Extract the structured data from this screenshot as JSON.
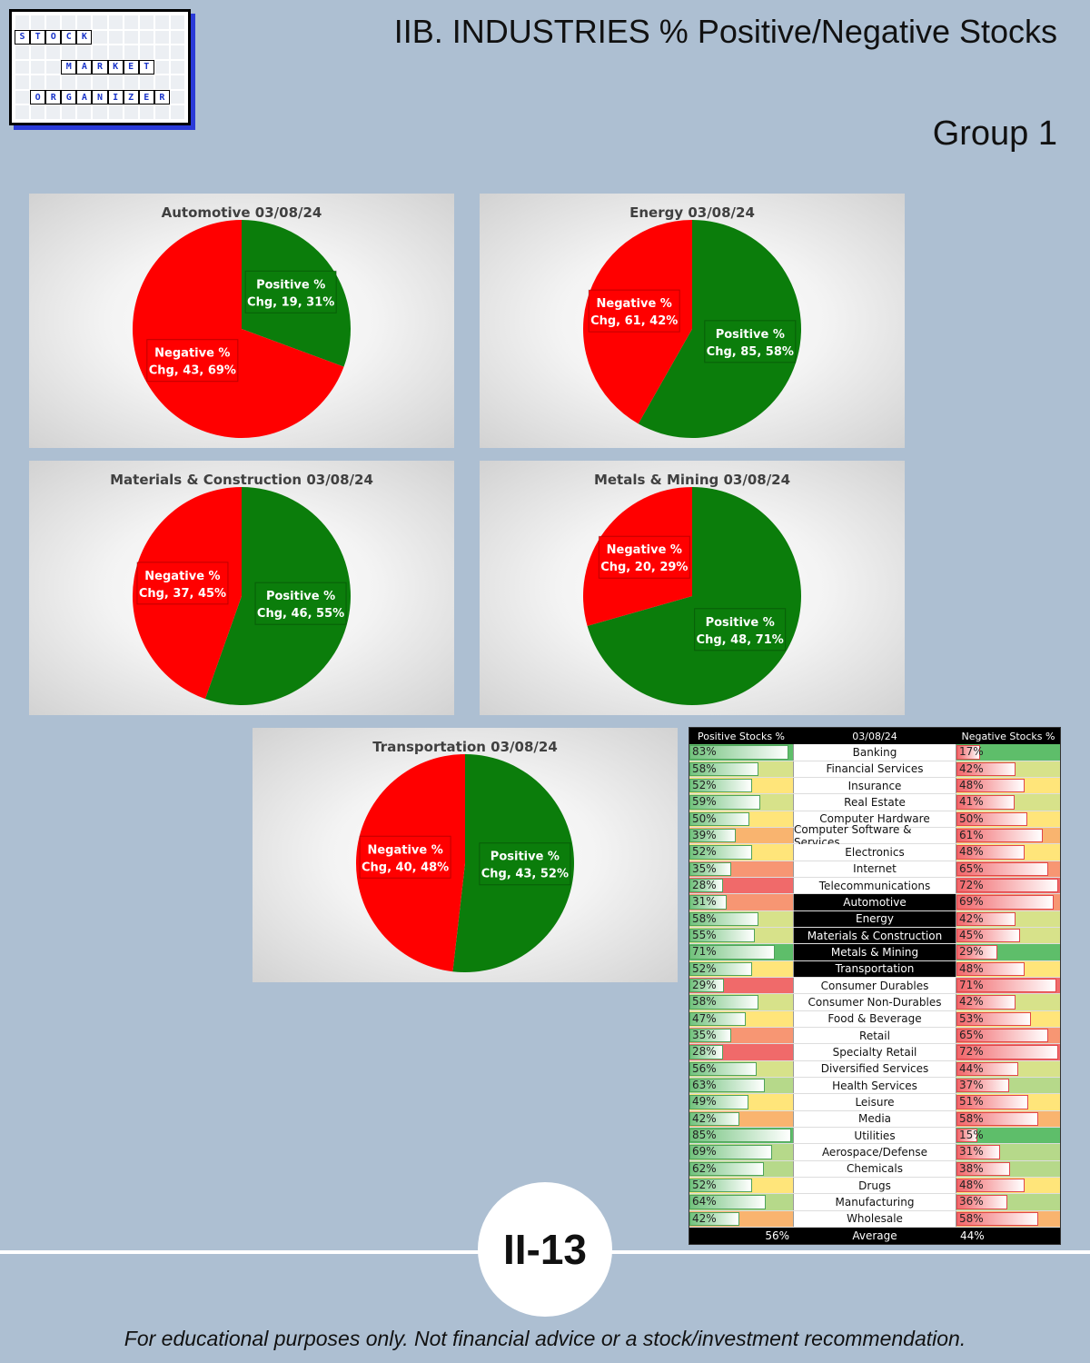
{
  "logo": {
    "rows": [
      [
        "",
        "",
        "",
        "",
        "",
        "",
        "",
        "",
        "",
        "",
        ""
      ],
      [
        "S",
        "T",
        "O",
        "C",
        "K",
        "",
        "",
        "",
        "",
        "",
        ""
      ],
      [
        "",
        "",
        "",
        "",
        "",
        "",
        "",
        "",
        "",
        "",
        ""
      ],
      [
        "",
        "",
        "",
        "M",
        "A",
        "R",
        "K",
        "E",
        "T",
        "",
        ""
      ],
      [
        "",
        "",
        "",
        "",
        "",
        "",
        "",
        "",
        "",
        "",
        ""
      ],
      [
        "",
        "O",
        "R",
        "G",
        "A",
        "N",
        "I",
        "Z",
        "E",
        "R",
        ""
      ],
      [
        "",
        "",
        "",
        "",
        "",
        "",
        "",
        "",
        "",
        "",
        ""
      ]
    ]
  },
  "title": "IIB. INDUSTRIES % Positive/Negative Stocks",
  "group": "Group 1",
  "colors": {
    "positive": "#0b7d0b",
    "negative": "#ff0000"
  },
  "chart_data": [
    {
      "type": "pie",
      "title": "Automotive 03/08/24",
      "slices": [
        {
          "name": "Positive % Chg",
          "value": 19,
          "percent": 31,
          "color": "#0b7d0b",
          "label_line1": "Positive %",
          "label_line2": "Chg, 19, 31%"
        },
        {
          "name": "Negative % Chg",
          "value": 43,
          "percent": 69,
          "color": "#ff0000",
          "label_line1": "Negative %",
          "label_line2": "Chg, 43, 69%"
        }
      ]
    },
    {
      "type": "pie",
      "title": "Energy 03/08/24",
      "slices": [
        {
          "name": "Positive % Chg",
          "value": 85,
          "percent": 58,
          "color": "#0b7d0b",
          "label_line1": "Positive %",
          "label_line2": "Chg, 85, 58%"
        },
        {
          "name": "Negative % Chg",
          "value": 61,
          "percent": 42,
          "color": "#ff0000",
          "label_line1": "Negative %",
          "label_line2": "Chg, 61, 42%"
        }
      ]
    },
    {
      "type": "pie",
      "title": "Materials & Construction 03/08/24",
      "slices": [
        {
          "name": "Positive % Chg",
          "value": 46,
          "percent": 55,
          "color": "#0b7d0b",
          "label_line1": "Positive %",
          "label_line2": "Chg, 46, 55%"
        },
        {
          "name": "Negative % Chg",
          "value": 37,
          "percent": 45,
          "color": "#ff0000",
          "label_line1": "Negative %",
          "label_line2": "Chg, 37, 45%"
        }
      ]
    },
    {
      "type": "pie",
      "title": "Metals & Mining 03/08/24",
      "slices": [
        {
          "name": "Positive % Chg",
          "value": 48,
          "percent": 71,
          "color": "#0b7d0b",
          "label_line1": "Positive %",
          "label_line2": "Chg, 48, 71%"
        },
        {
          "name": "Negative % Chg",
          "value": 20,
          "percent": 29,
          "color": "#ff0000",
          "label_line1": "Negative %",
          "label_line2": "Chg, 20, 29%"
        }
      ]
    },
    {
      "type": "pie",
      "title": "Transportation 03/08/24",
      "slices": [
        {
          "name": "Positive % Chg",
          "value": 43,
          "percent": 52,
          "color": "#0b7d0b",
          "label_line1": "Positive %",
          "label_line2": "Chg, 43, 52%"
        },
        {
          "name": "Negative % Chg",
          "value": 40,
          "percent": 48,
          "color": "#ff0000",
          "label_line1": "Negative %",
          "label_line2": "Chg, 40, 48%"
        }
      ]
    },
    {
      "type": "table",
      "headers": [
        "Positive Stocks %",
        "03/08/24",
        "Negative Stocks %"
      ],
      "rows": [
        {
          "industry": "Banking",
          "positive": 83,
          "negative": 17,
          "pos_label": "83%",
          "neg_label": "17%",
          "highlight": false
        },
        {
          "industry": "Financial Services",
          "positive": 58,
          "negative": 42,
          "pos_label": "58%",
          "neg_label": "42%",
          "highlight": false
        },
        {
          "industry": "Insurance",
          "positive": 52,
          "negative": 48,
          "pos_label": "52%",
          "neg_label": "48%",
          "highlight": false
        },
        {
          "industry": "Real Estate",
          "positive": 59,
          "negative": 41,
          "pos_label": "59%",
          "neg_label": "41%",
          "highlight": false
        },
        {
          "industry": "Computer Hardware",
          "positive": 50,
          "negative": 50,
          "pos_label": "50%",
          "neg_label": "50%",
          "highlight": false
        },
        {
          "industry": "Computer Software & Services",
          "positive": 39,
          "negative": 61,
          "pos_label": "39%",
          "neg_label": "61%",
          "highlight": false
        },
        {
          "industry": "Electronics",
          "positive": 52,
          "negative": 48,
          "pos_label": "52%",
          "neg_label": "48%",
          "highlight": false
        },
        {
          "industry": "Internet",
          "positive": 35,
          "negative": 65,
          "pos_label": "35%",
          "neg_label": "65%",
          "highlight": false
        },
        {
          "industry": "Telecommunications",
          "positive": 28,
          "negative": 72,
          "pos_label": "28%",
          "neg_label": "72%",
          "highlight": false
        },
        {
          "industry": "Automotive",
          "positive": 31,
          "negative": 69,
          "pos_label": "31%",
          "neg_label": "69%",
          "highlight": true
        },
        {
          "industry": "Energy",
          "positive": 58,
          "negative": 42,
          "pos_label": "58%",
          "neg_label": "42%",
          "highlight": true
        },
        {
          "industry": "Materials & Construction",
          "positive": 55,
          "negative": 45,
          "pos_label": "55%",
          "neg_label": "45%",
          "highlight": true
        },
        {
          "industry": "Metals & Mining",
          "positive": 71,
          "negative": 29,
          "pos_label": "71%",
          "neg_label": "29%",
          "highlight": true
        },
        {
          "industry": "Transportation",
          "positive": 52,
          "negative": 48,
          "pos_label": "52%",
          "neg_label": "48%",
          "highlight": true
        },
        {
          "industry": "Consumer Durables",
          "positive": 29,
          "negative": 71,
          "pos_label": "29%",
          "neg_label": "71%",
          "highlight": false
        },
        {
          "industry": "Consumer Non-Durables",
          "positive": 58,
          "negative": 42,
          "pos_label": "58%",
          "neg_label": "42%",
          "highlight": false
        },
        {
          "industry": "Food & Beverage",
          "positive": 47,
          "negative": 53,
          "pos_label": "47%",
          "neg_label": "53%",
          "highlight": false
        },
        {
          "industry": "Retail",
          "positive": 35,
          "negative": 65,
          "pos_label": "35%",
          "neg_label": "65%",
          "highlight": false
        },
        {
          "industry": "Specialty Retail",
          "positive": 28,
          "negative": 72,
          "pos_label": "28%",
          "neg_label": "72%",
          "highlight": false
        },
        {
          "industry": "Diversified Services",
          "positive": 56,
          "negative": 44,
          "pos_label": "56%",
          "neg_label": "44%",
          "highlight": false
        },
        {
          "industry": "Health Services",
          "positive": 63,
          "negative": 37,
          "pos_label": "63%",
          "neg_label": "37%",
          "highlight": false
        },
        {
          "industry": "Leisure",
          "positive": 49,
          "negative": 51,
          "pos_label": "49%",
          "neg_label": "51%",
          "highlight": false
        },
        {
          "industry": "Media",
          "positive": 42,
          "negative": 58,
          "pos_label": "42%",
          "neg_label": "58%",
          "highlight": false
        },
        {
          "industry": "Utilities",
          "positive": 85,
          "negative": 15,
          "pos_label": "85%",
          "neg_label": "15%",
          "highlight": false
        },
        {
          "industry": "Aerospace/Defense",
          "positive": 69,
          "negative": 31,
          "pos_label": "69%",
          "neg_label": "31%",
          "highlight": false
        },
        {
          "industry": "Chemicals",
          "positive": 62,
          "negative": 38,
          "pos_label": "62%",
          "neg_label": "38%",
          "highlight": false
        },
        {
          "industry": "Drugs",
          "positive": 52,
          "negative": 48,
          "pos_label": "52%",
          "neg_label": "48%",
          "highlight": false
        },
        {
          "industry": "Manufacturing",
          "positive": 64,
          "negative": 36,
          "pos_label": "64%",
          "neg_label": "36%",
          "highlight": false
        },
        {
          "industry": "Wholesale",
          "positive": 42,
          "negative": 58,
          "pos_label": "42%",
          "neg_label": "58%",
          "highlight": false
        }
      ],
      "average": {
        "label": "Average",
        "positive": "56%",
        "negative": "44%"
      }
    }
  ],
  "page_number": "II-13",
  "footer": "For educational purposes only. Not financial advice or a stock/investment recommendation."
}
